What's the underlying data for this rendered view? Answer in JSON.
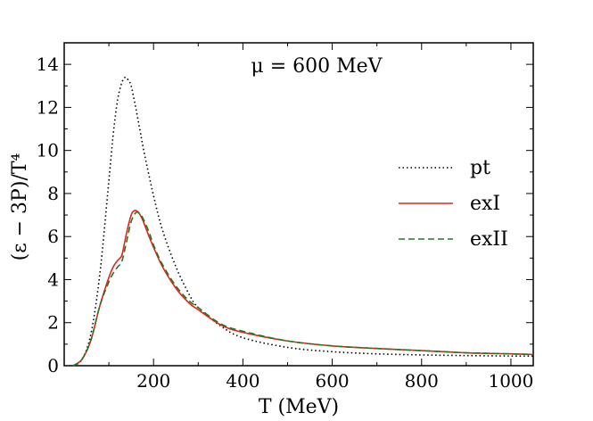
{
  "chart_data": {
    "type": "line",
    "title": "",
    "annotation": "μ = 600 MeV",
    "xlabel": "T (MeV)",
    "ylabel": "(ε − 3P)/T⁴",
    "xlim": [
      0,
      1050
    ],
    "ylim": [
      0,
      15
    ],
    "xticks": [
      200,
      400,
      600,
      800,
      1000
    ],
    "yticks": [
      0,
      2,
      4,
      6,
      8,
      10,
      12,
      14
    ],
    "grid": false,
    "legend_position": "right",
    "series": [
      {
        "name": "pt",
        "color": "#000000",
        "style": "dotted",
        "x": [
          20,
          40,
          60,
          80,
          100,
          110,
          120,
          130,
          138,
          145,
          150,
          160,
          170,
          180,
          200,
          220,
          250,
          280,
          300,
          350,
          400,
          500,
          600,
          700,
          800,
          900,
          1000,
          1050
        ],
        "y": [
          0,
          0.3,
          1.5,
          4.3,
          8.6,
          10.8,
          12.4,
          13.2,
          13.4,
          13.2,
          13.0,
          12.0,
          10.9,
          9.8,
          7.9,
          6.3,
          4.6,
          3.3,
          2.7,
          1.85,
          1.3,
          0.85,
          0.65,
          0.55,
          0.5,
          0.47,
          0.45,
          0.45
        ]
      },
      {
        "name": "exI",
        "color": "#e8221c",
        "style": "solid",
        "x": [
          20,
          40,
          60,
          80,
          100,
          110,
          120,
          125,
          130,
          140,
          150,
          157,
          165,
          175,
          190,
          200,
          220,
          250,
          280,
          300,
          350,
          400,
          500,
          600,
          700,
          800,
          900,
          1000,
          1050
        ],
        "y": [
          0,
          0.3,
          1.2,
          2.8,
          4.1,
          4.6,
          4.9,
          5.0,
          5.2,
          6.2,
          7.0,
          7.2,
          7.15,
          6.8,
          6.0,
          5.5,
          4.6,
          3.6,
          2.9,
          2.6,
          1.9,
          1.55,
          1.15,
          0.92,
          0.8,
          0.7,
          0.6,
          0.55,
          0.52
        ]
      },
      {
        "name": "exII",
        "color": "#207a20",
        "style": "dashed",
        "x": [
          20,
          40,
          60,
          80,
          100,
          110,
          120,
          125,
          130,
          140,
          150,
          160,
          167,
          175,
          190,
          200,
          220,
          250,
          280,
          300,
          350,
          400,
          500,
          600,
          700,
          800,
          900,
          1000,
          1050
        ],
        "y": [
          0,
          0.3,
          1.2,
          2.8,
          3.9,
          4.3,
          4.6,
          4.7,
          4.9,
          5.8,
          6.7,
          7.1,
          7.1,
          6.9,
          6.2,
          5.6,
          4.7,
          3.7,
          3.0,
          2.7,
          1.95,
          1.6,
          1.15,
          0.92,
          0.8,
          0.7,
          0.6,
          0.55,
          0.52
        ]
      }
    ]
  }
}
